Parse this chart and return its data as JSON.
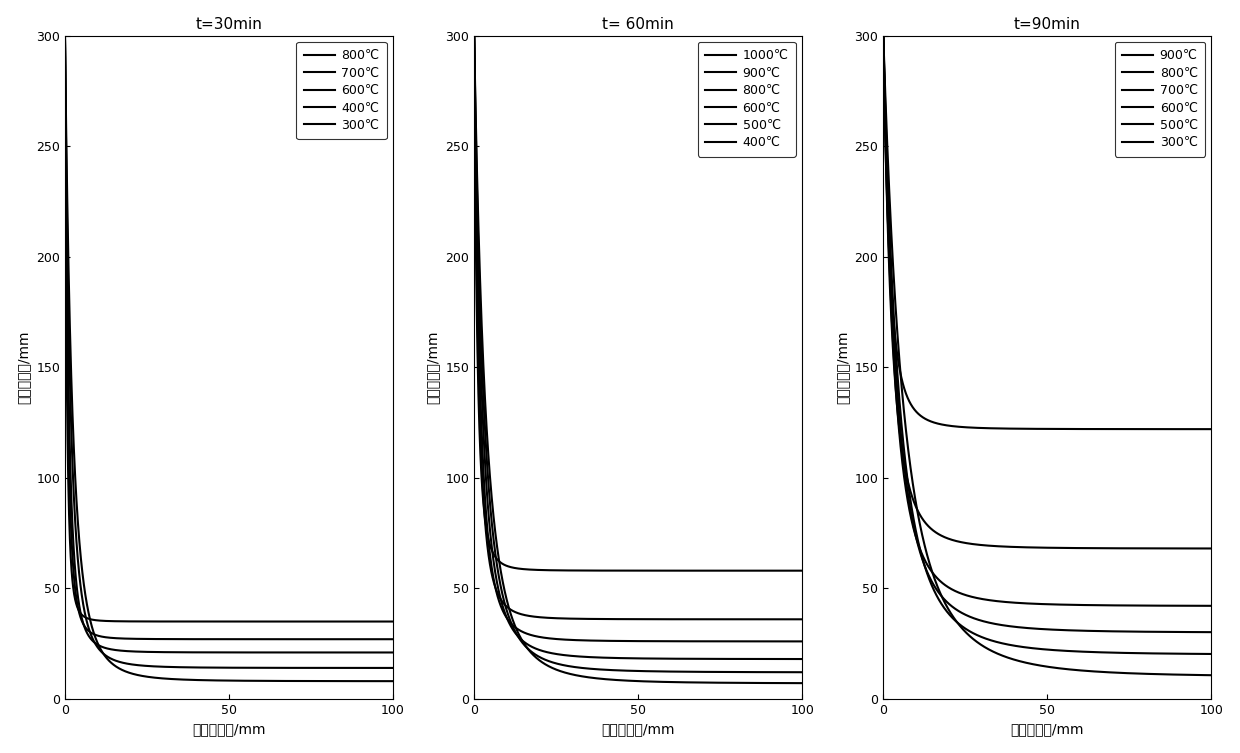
{
  "panels": [
    {
      "title": "t=30min",
      "curves": [
        {
          "label": "800℃",
          "x_knee": 2.0,
          "y_flat": 35,
          "lw": 1.5
        },
        {
          "label": "700℃",
          "x_knee": 3.0,
          "y_flat": 27,
          "lw": 1.5
        },
        {
          "label": "600℃",
          "x_knee": 4.0,
          "y_flat": 21,
          "lw": 1.5
        },
        {
          "label": "400℃",
          "x_knee": 6.0,
          "y_flat": 14,
          "lw": 1.5
        },
        {
          "label": "300℃",
          "x_knee": 8.0,
          "y_flat": 8,
          "lw": 1.5
        }
      ]
    },
    {
      "title": "t= 60min",
      "curves": [
        {
          "label": "1000℃",
          "x_knee": 3.5,
          "y_flat": 58,
          "lw": 1.5
        },
        {
          "label": "900℃",
          "x_knee": 5.0,
          "y_flat": 36,
          "lw": 1.5
        },
        {
          "label": "800℃",
          "x_knee": 6.5,
          "y_flat": 26,
          "lw": 1.5
        },
        {
          "label": "600℃",
          "x_knee": 8.5,
          "y_flat": 18,
          "lw": 1.5
        },
        {
          "label": "500℃",
          "x_knee": 10.5,
          "y_flat": 12,
          "lw": 1.5
        },
        {
          "label": "400℃",
          "x_knee": 12.5,
          "y_flat": 7,
          "lw": 1.5
        }
      ]
    },
    {
      "title": "t=90min",
      "curves": [
        {
          "label": "900℃",
          "x_knee": 7.0,
          "y_flat": 122,
          "lw": 1.5
        },
        {
          "label": "800℃",
          "x_knee": 9.5,
          "y_flat": 68,
          "lw": 1.5
        },
        {
          "label": "700℃",
          "x_knee": 12.0,
          "y_flat": 42,
          "lw": 1.5
        },
        {
          "label": "600℃",
          "x_knee": 14.5,
          "y_flat": 30,
          "lw": 1.5
        },
        {
          "label": "500℃",
          "x_knee": 17.0,
          "y_flat": 20,
          "lw": 1.5
        },
        {
          "label": "300℃",
          "x_knee": 22.0,
          "y_flat": 10,
          "lw": 1.5
        }
      ]
    }
  ],
  "xlabel": "至侧边距离/mm",
  "ylabel": "至底边距离/mm",
  "xlim": [
    0,
    100
  ],
  "ylim": [
    0,
    300
  ],
  "xticks": [
    0,
    50,
    100
  ],
  "yticks": [
    0,
    50,
    100,
    150,
    200,
    250,
    300
  ],
  "line_color": "#000000",
  "bg_color": "#ffffff",
  "title_fontsize": 11,
  "label_fontsize": 10,
  "legend_fontsize": 9,
  "tick_fontsize": 9
}
